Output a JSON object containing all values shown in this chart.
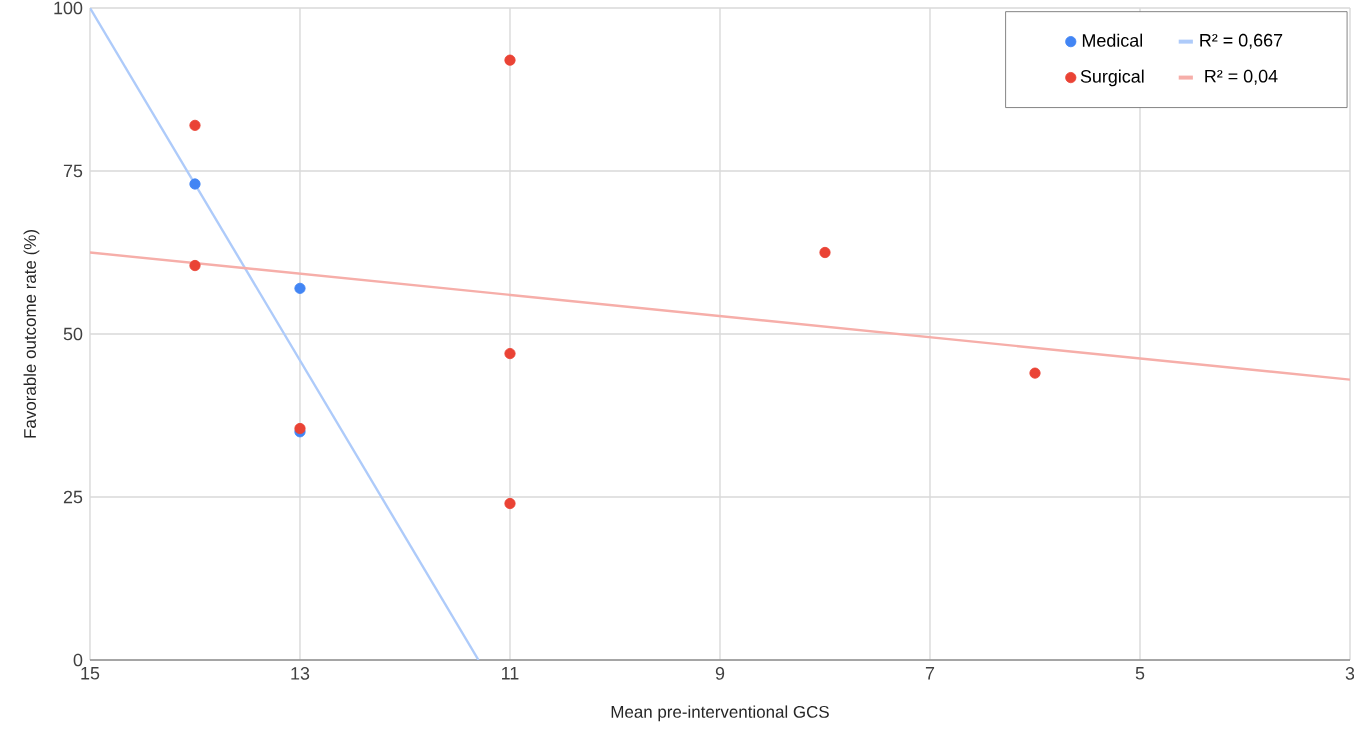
{
  "chart_data": {
    "type": "scatter",
    "xlabel": "Mean pre-interventional GCS",
    "ylabel": "Favorable outcome rate (%)",
    "xlim": [
      15,
      3
    ],
    "xticks": [
      15,
      13,
      11,
      9,
      7,
      5,
      3
    ],
    "ylim": [
      0,
      100
    ],
    "yticks": [
      0,
      25,
      50,
      75,
      100
    ],
    "grid": true,
    "legend": "top right",
    "series": [
      {
        "name": "Medical",
        "marker": "circle",
        "color": "#4285f4",
        "x": [
          14,
          13,
          13
        ],
        "values": [
          73,
          57,
          35
        ]
      },
      {
        "name": "R² = 0,667",
        "type": "line",
        "marker": "none",
        "color": "#aecbfa",
        "x": [
          15,
          11.3
        ],
        "values": [
          100,
          0
        ]
      },
      {
        "name": "Surgical",
        "marker": "circle",
        "color": "#ea4335",
        "x": [
          14,
          14,
          13,
          11,
          11,
          11,
          8,
          6
        ],
        "values": [
          82,
          60.5,
          35.5,
          92,
          47,
          24,
          62.5,
          44
        ]
      },
      {
        "name": "R² = 0,04",
        "type": "line",
        "marker": "none",
        "color": "#f6aea9",
        "x": [
          15,
          3
        ],
        "values": [
          62.5,
          43
        ]
      }
    ]
  }
}
